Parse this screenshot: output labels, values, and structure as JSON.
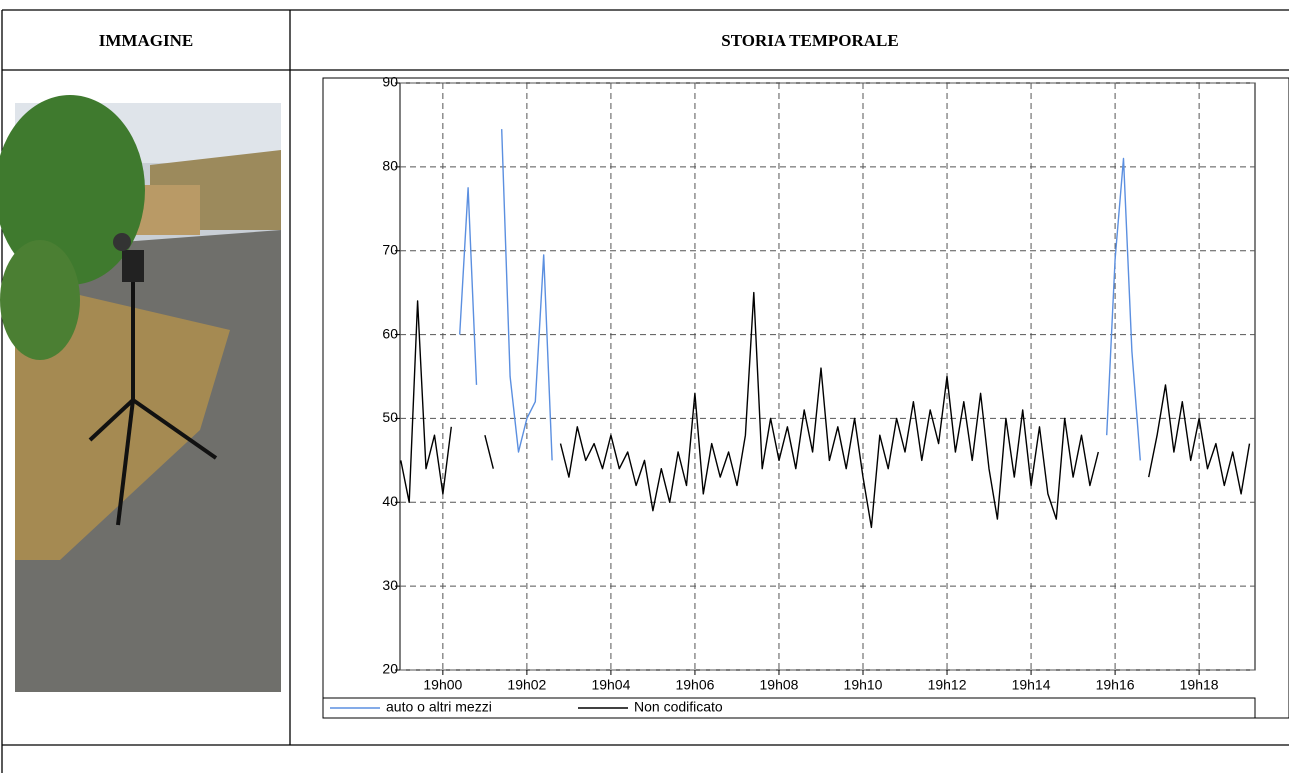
{
  "table": {
    "headers": [
      "IMMAGINE",
      "STORIA TEMPORALE"
    ]
  },
  "chart_data": {
    "type": "line",
    "x": [
      -1,
      -0.8,
      -0.6,
      -0.4,
      -0.2,
      0,
      0.2,
      0.4,
      0.6,
      0.8,
      1,
      1.2,
      1.4,
      1.6,
      1.8,
      2,
      2.2,
      2.4,
      2.6,
      2.8,
      3,
      3.2,
      3.4,
      3.6,
      3.8,
      4,
      4.2,
      4.4,
      4.6,
      4.8,
      5,
      5.2,
      5.4,
      5.6,
      5.8,
      6,
      6.2,
      6.4,
      6.6,
      6.8,
      7,
      7.2,
      7.4,
      7.6,
      7.8,
      8,
      8.2,
      8.4,
      8.6,
      8.8,
      9,
      9.2,
      9.4,
      9.6,
      9.8,
      10,
      10.2,
      10.4,
      10.6,
      10.8,
      11,
      11.2,
      11.4,
      11.6,
      11.8,
      12,
      12.2,
      12.4,
      12.6,
      12.8,
      13,
      13.2,
      13.4,
      13.6,
      13.8,
      14,
      14.2,
      14.4,
      14.6,
      14.8,
      15,
      15.2,
      15.4,
      15.6,
      15.8,
      16,
      16.2,
      16.4,
      16.6,
      16.8,
      17,
      17.2,
      17.4,
      17.6,
      17.8,
      18,
      18.2,
      18.4,
      18.6,
      18.8,
      19,
      19.2
    ],
    "series": [
      {
        "name": "auto o altri mezzi",
        "color": "#5b8fe0",
        "values": [
          null,
          null,
          null,
          null,
          null,
          null,
          null,
          60,
          77.5,
          54,
          null,
          null,
          84.5,
          55,
          46,
          50,
          52,
          69.5,
          45,
          null,
          null,
          null,
          null,
          null,
          null,
          null,
          null,
          null,
          null,
          null,
          null,
          null,
          null,
          null,
          null,
          null,
          null,
          null,
          null,
          null,
          null,
          null,
          null,
          null,
          null,
          null,
          null,
          null,
          null,
          null,
          null,
          null,
          null,
          null,
          null,
          null,
          null,
          null,
          null,
          null,
          null,
          null,
          null,
          null,
          null,
          null,
          null,
          null,
          null,
          null,
          null,
          null,
          null,
          null,
          null,
          null,
          null,
          null,
          null,
          null,
          null,
          null,
          null,
          null,
          48,
          69,
          81,
          58,
          45,
          null,
          null,
          null,
          null,
          null,
          null,
          null,
          null,
          null,
          null,
          null,
          null,
          null
        ]
      },
      {
        "name": "Non codificato",
        "color": "#000000",
        "values": [
          45,
          40,
          64,
          44,
          48,
          41,
          49,
          null,
          null,
          null,
          48,
          44,
          null,
          null,
          null,
          null,
          null,
          null,
          null,
          47,
          43,
          49,
          45,
          47,
          44,
          48,
          44,
          46,
          42,
          45,
          39,
          44,
          40,
          46,
          42,
          53,
          41,
          47,
          43,
          46,
          42,
          48,
          65,
          44,
          50,
          45,
          49,
          44,
          51,
          46,
          56,
          45,
          49,
          44,
          50,
          43,
          37,
          48,
          44,
          50,
          46,
          52,
          45,
          51,
          47,
          55,
          46,
          52,
          45,
          53,
          44,
          38,
          50,
          43,
          51,
          42,
          49,
          41,
          38,
          50,
          43,
          48,
          42,
          46,
          null,
          null,
          null,
          null,
          null,
          43,
          48,
          54,
          46,
          52,
          45,
          50,
          44,
          47,
          42,
          46,
          41,
          47
        ]
      }
    ],
    "xlim": [
      -1.02,
      19.33
    ],
    "ylim": [
      20,
      90
    ],
    "xticks": [
      {
        "value": 0,
        "label": "19h00"
      },
      {
        "value": 2,
        "label": "19h02"
      },
      {
        "value": 4,
        "label": "19h04"
      },
      {
        "value": 6,
        "label": "19h06"
      },
      {
        "value": 8,
        "label": "19h08"
      },
      {
        "value": 10,
        "label": "19h10"
      },
      {
        "value": 12,
        "label": "19h12"
      },
      {
        "value": 14,
        "label": "19h14"
      },
      {
        "value": 16,
        "label": "19h16"
      },
      {
        "value": 18,
        "label": "19h18"
      }
    ],
    "yticks": [
      20,
      30,
      40,
      50,
      60,
      70,
      80,
      90
    ],
    "grid": true
  }
}
